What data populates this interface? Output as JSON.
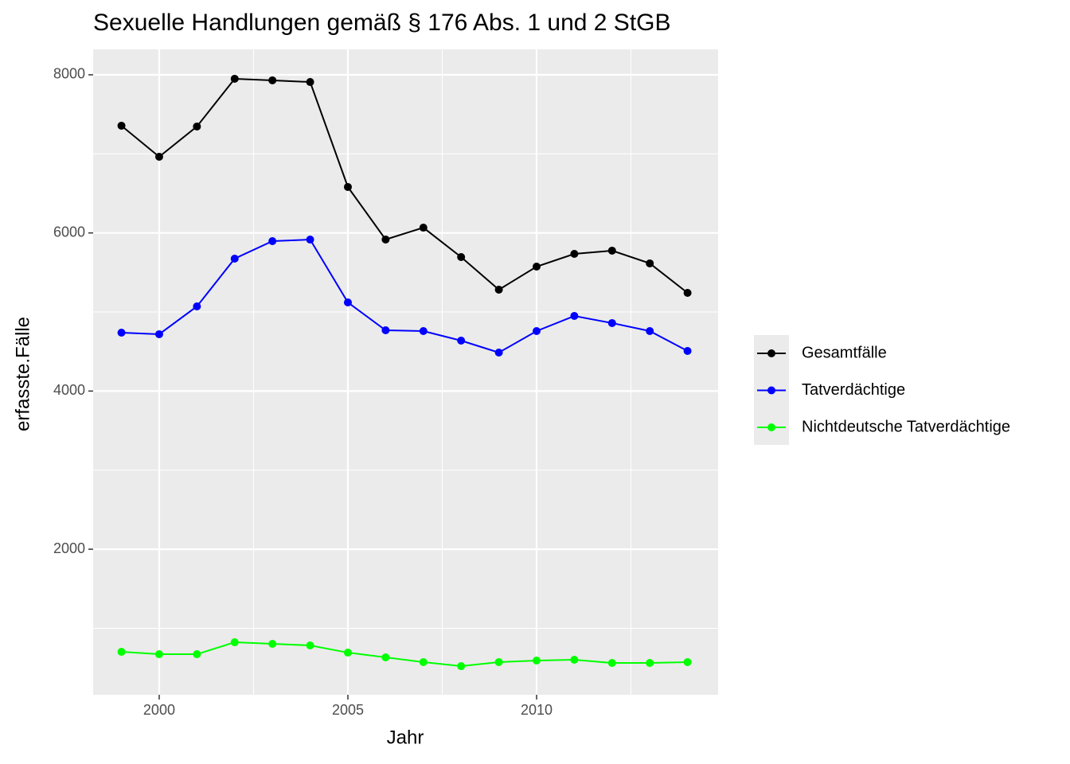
{
  "chart_data": {
    "type": "line",
    "title": "Sexuelle Handlungen gemäß § 176 Abs. 1 und 2 StGB",
    "x_label": "Jahr",
    "y_label": "erfasste.Fälle",
    "x": [
      1999,
      2000,
      2001,
      2002,
      2003,
      2004,
      2005,
      2006,
      2007,
      2008,
      2009,
      2010,
      2011,
      2012,
      2013,
      2014
    ],
    "series": [
      {
        "name": "Gesamtfälle",
        "color": "#000000",
        "values": [
          7356,
          6963,
          7346,
          7950,
          7930,
          7909,
          6581,
          5917,
          6067,
          5695,
          5282,
          5574,
          5735,
          5776,
          5615,
          5242
        ]
      },
      {
        "name": "Tatverdächtige",
        "color": "#0000ff",
        "values": [
          4739,
          4719,
          5071,
          5675,
          5896,
          5916,
          5121,
          4769,
          4759,
          4638,
          4487,
          4759,
          4950,
          4860,
          4759,
          4507
        ]
      },
      {
        "name": "Nichtdeutsche Tatverdächtige",
        "color": "#00ff00",
        "values": [
          702,
          672,
          672,
          823,
          803,
          783,
          692,
          632,
          572,
          521,
          572,
          592,
          602,
          561,
          561,
          572
        ]
      }
    ],
    "xlim": [
      1998.25,
      2014.81
    ],
    "xticks": [
      2000,
      2005,
      2010
    ],
    "xminor": [
      2002.5,
      2007.5,
      2012.5
    ],
    "ylim": [
      159,
      8322
    ],
    "yticks": [
      2000,
      4000,
      6000,
      8000
    ],
    "yminor": [
      1000,
      3000,
      5000,
      7000
    ],
    "grid": true,
    "legend": "right"
  }
}
